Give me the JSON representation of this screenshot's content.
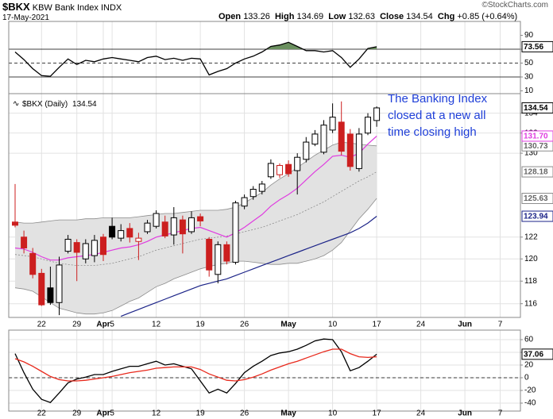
{
  "header": {
    "symbol": "$BKX",
    "name": "KBW Bank Index",
    "exchange": "INDX",
    "date": "17-May-2021",
    "open_label": "Open",
    "high_label": "High",
    "low_label": "Low",
    "close_label": "Close",
    "chg_label": "Chg",
    "chg": "+0.85",
    "chg_pct": "(+0.64%)",
    "watermark": "©StockCharts.com",
    "annotation": [
      "The Banking Index",
      "closed at a new all",
      "time closing high"
    ]
  },
  "chart_data": [
    {
      "type": "line",
      "ylim": [
        6,
        110
      ],
      "yticks": [
        10,
        30,
        50,
        70,
        90
      ],
      "grid": false,
      "reference_lines": [
        {
          "value": 70,
          "fill": "#6a8f5e"
        },
        {
          "value": 50,
          "dash": true
        },
        {
          "value": 30
        }
      ],
      "series": [
        {
          "color": "#000000",
          "values": [
            66,
            55,
            42,
            32,
            31,
            44,
            56,
            48,
            54,
            52,
            56,
            58,
            56,
            54,
            52,
            58,
            60,
            55,
            57,
            54,
            57,
            56,
            33,
            38,
            42,
            50,
            56,
            60,
            66,
            74,
            76,
            80,
            74,
            68,
            68,
            66,
            68,
            58,
            44,
            56,
            71,
            73.56,
            null,
            null,
            null,
            null,
            null,
            null,
            null,
            null,
            null,
            null,
            null,
            null,
            null,
            null,
            null,
            null
          ]
        }
      ]
    },
    {
      "type": "candlestick",
      "legend_label": "$BKX (Daily)",
      "log_scale": true,
      "grid": true,
      "ylim": [
        114.8,
        136
      ],
      "yticks": [
        116,
        118,
        120,
        122,
        130,
        132,
        134
      ],
      "up_color": "#000000",
      "down_color": "#cc1f1f",
      "categories": [
        null,
        null,
        null,
        "22",
        null,
        null,
        null,
        "29",
        null,
        null,
        "Apr",
        "5",
        null,
        null,
        null,
        null,
        "12",
        null,
        null,
        null,
        null,
        "19",
        null,
        null,
        null,
        null,
        "26",
        null,
        null,
        null,
        null,
        "May",
        null,
        null,
        null,
        null,
        "10",
        null,
        null,
        null,
        null,
        "17",
        null,
        null,
        null,
        null,
        "24",
        null,
        null,
        null,
        null,
        "Jun",
        null,
        null,
        null,
        "7",
        null,
        null
      ],
      "open": [
        123.4,
        122.0,
        120.5,
        118.7,
        117.4,
        116.1,
        120.7,
        121.5,
        120.0,
        120.3,
        122.0,
        123.0,
        121.9,
        122.8,
        121.6,
        122.5,
        123.0,
        123.4,
        122.2,
        123.6,
        122.5,
        123.9,
        121.8,
        118.6,
        121.3,
        119.7,
        124.9,
        125.8,
        126.3,
        127.7,
        127.9,
        128.9,
        128.3,
        129.4,
        130.9,
        130.1,
        132.3,
        133.1,
        131.9,
        128.5,
        132.0,
        133.26,
        null,
        null,
        null,
        null,
        null,
        null,
        null,
        null,
        null,
        null,
        null,
        null,
        null,
        null,
        null,
        null
      ],
      "high": [
        127.0,
        122.6,
        121.0,
        119.1,
        119.3,
        120.2,
        122.2,
        121.8,
        121.8,
        122.2,
        122.3,
        123.8,
        123.2,
        123.3,
        122.4,
        123.6,
        124.5,
        124.0,
        124.8,
        124.0,
        124.4,
        124.2,
        122.0,
        121.6,
        121.6,
        125.4,
        126.0,
        126.8,
        127.3,
        129.4,
        129.0,
        129.3,
        130.0,
        131.6,
        132.3,
        133.3,
        135.0,
        135.2,
        132.4,
        132.5,
        134.0,
        134.69,
        null,
        null,
        null,
        null,
        null,
        null,
        null,
        null,
        null,
        null,
        null,
        null,
        null,
        null,
        null,
        null
      ],
      "low": [
        122.9,
        120.5,
        118.25,
        115.8,
        115.9,
        115.0,
        120.5,
        118.0,
        119.6,
        119.7,
        119.8,
        121.8,
        121.6,
        121.5,
        119.9,
        122.3,
        122.8,
        121.9,
        121.3,
        120.5,
        122.3,
        123.0,
        118.4,
        117.8,
        119.5,
        119.5,
        124.6,
        125.5,
        126.0,
        127.5,
        127.6,
        127.7,
        126.0,
        129.1,
        130.7,
        129.9,
        132.0,
        129.8,
        128.3,
        128.2,
        131.8,
        132.63,
        null,
        null,
        null,
        null,
        null,
        null,
        null,
        null,
        null,
        null,
        null,
        null,
        null,
        null,
        null,
        null
      ],
      "close": [
        123.1,
        121.0,
        118.6,
        115.9,
        116.1,
        119.45,
        121.8,
        120.6,
        121.4,
        121.7,
        120.4,
        122.0,
        122.6,
        122.0,
        121.9,
        123.3,
        124.2,
        122.1,
        123.8,
        122.3,
        123.8,
        123.5,
        119.0,
        121.3,
        119.8,
        125.2,
        125.7,
        126.5,
        127.0,
        129.0,
        128.8,
        128.0,
        129.6,
        131.1,
        131.9,
        132.8,
        133.6,
        130.2,
        128.7,
        131.9,
        133.6,
        134.54,
        null,
        null,
        null,
        null,
        null,
        null,
        null,
        null,
        null,
        null,
        null,
        null,
        null,
        null,
        null,
        null
      ],
      "bands": {
        "fill": "#e2e2e2",
        "upper": {
          "color": "#8c8c8c",
          "values": [
            123.4,
            123.3,
            123.3,
            123.4,
            123.5,
            123.6,
            123.6,
            123.6,
            123.7,
            123.7,
            123.8,
            123.8,
            123.8,
            123.8,
            123.9,
            124.0,
            124.1,
            124.2,
            124.2,
            124.3,
            124.4,
            124.5,
            124.5,
            124.5,
            124.6,
            124.8,
            125.2,
            125.7,
            126.2,
            126.9,
            127.5,
            128.0,
            128.6,
            129.2,
            129.8,
            130.3,
            130.8,
            131.1,
            131.0,
            130.9,
            130.8,
            130.73,
            null,
            null,
            null,
            null,
            null,
            null,
            null,
            null,
            null,
            null,
            null,
            null,
            null,
            null,
            null,
            null
          ]
        },
        "middle": {
          "color": "#8c8c8c",
          "dash": true,
          "values": [
            120.4,
            120.3,
            120.2,
            120.0,
            119.8,
            119.6,
            119.5,
            119.4,
            119.4,
            119.4,
            119.5,
            119.6,
            119.8,
            120.0,
            120.2,
            120.5,
            120.8,
            121.0,
            121.2,
            121.4,
            121.6,
            121.8,
            121.9,
            122.0,
            122.1,
            122.3,
            122.5,
            122.7,
            122.9,
            123.2,
            123.5,
            123.8,
            124.1,
            124.5,
            124.9,
            125.3,
            125.8,
            126.3,
            126.8,
            127.3,
            127.7,
            128.18,
            null,
            null,
            null,
            null,
            null,
            null,
            null,
            null,
            null,
            null,
            null,
            null,
            null,
            null,
            null,
            null
          ]
        },
        "lower": {
          "color": "#8c8c8c",
          "values": [
            117.4,
            117.3,
            117.1,
            116.6,
            116.1,
            115.6,
            115.4,
            115.2,
            115.1,
            115.1,
            115.2,
            115.4,
            115.8,
            116.2,
            116.5,
            117.0,
            117.5,
            117.8,
            118.2,
            118.5,
            118.8,
            119.1,
            119.3,
            119.5,
            119.6,
            119.8,
            119.8,
            119.7,
            119.6,
            119.5,
            119.5,
            119.6,
            119.6,
            119.8,
            120.0,
            120.3,
            120.8,
            121.5,
            122.6,
            123.7,
            124.6,
            125.63,
            null,
            null,
            null,
            null,
            null,
            null,
            null,
            null,
            null,
            null,
            null,
            null,
            null,
            null,
            null,
            null
          ]
        }
      },
      "series": [
        {
          "color": "#e03ce0",
          "values": [
            121.0,
            120.9,
            120.6,
            120.2,
            119.9,
            119.9,
            120.1,
            120.2,
            120.3,
            120.4,
            120.6,
            120.8,
            121.0,
            121.1,
            121.3,
            121.6,
            122.0,
            122.2,
            122.4,
            122.6,
            122.8,
            122.9,
            122.6,
            122.3,
            122.0,
            122.4,
            122.9,
            123.5,
            124.1,
            124.9,
            125.5,
            126.0,
            126.6,
            127.4,
            128.2,
            128.9,
            129.7,
            129.8,
            129.6,
            130.0,
            130.9,
            131.7,
            null,
            null,
            null,
            null,
            null,
            null,
            null,
            null,
            null,
            null,
            null,
            null,
            null,
            null,
            null,
            null
          ],
          "value_labels": [
            null,
            null,
            null,
            null,
            null,
            null,
            null,
            null,
            null,
            null,
            null,
            null,
            null,
            null,
            null,
            null,
            null,
            null,
            null,
            null,
            null,
            null,
            null,
            null,
            null,
            null,
            null,
            null,
            null,
            null,
            null,
            null,
            null,
            null,
            null,
            null,
            null,
            null,
            null,
            null,
            null,
            "131.70",
            null,
            null,
            null,
            null,
            null,
            null,
            null,
            null,
            null,
            null,
            null,
            null,
            null,
            null,
            null,
            null
          ]
        },
        {
          "color": "#1c2488",
          "values": [
            null,
            null,
            null,
            null,
            null,
            null,
            null,
            null,
            null,
            null,
            null,
            null,
            114.9,
            115.2,
            115.5,
            115.8,
            116.1,
            116.4,
            116.7,
            117.0,
            117.3,
            117.6,
            117.8,
            118.0,
            118.2,
            118.5,
            118.8,
            119.1,
            119.4,
            119.7,
            120.0,
            120.3,
            120.6,
            120.9,
            121.2,
            121.5,
            121.8,
            122.1,
            122.4,
            122.8,
            123.3,
            123.94,
            null,
            null,
            null,
            null,
            null,
            null,
            null,
            null,
            null,
            null,
            null,
            null,
            null,
            null,
            null,
            null
          ]
        }
      ]
    },
    {
      "type": "line",
      "ylim": [
        -52.5,
        75
      ],
      "yticks": [
        -40,
        -20,
        0,
        20,
        40,
        60
      ],
      "grid": true,
      "reference_lines": [
        {
          "value": 0,
          "dash": true
        }
      ],
      "series": [
        {
          "color": "#000000",
          "values": [
            38,
            8,
            -18,
            -34,
            -39,
            -24,
            -8,
            -2,
            1,
            5,
            5,
            10,
            14,
            18,
            18,
            22,
            26,
            20,
            22,
            18,
            14,
            -5,
            -24,
            -18,
            -24,
            -9,
            8,
            18,
            26,
            35,
            39,
            41,
            45,
            51,
            58,
            61,
            60,
            41,
            11,
            16,
            26,
            37.06,
            null,
            null,
            null,
            null,
            null,
            null,
            null,
            null,
            null,
            null,
            null,
            null,
            null,
            null,
            null,
            null
          ]
        },
        {
          "color": "#e8291c",
          "values": [
            30,
            25,
            18,
            10,
            2,
            -3,
            -5,
            -5,
            -4,
            -2,
            0,
            2,
            5,
            8,
            10,
            12,
            15,
            16,
            17,
            17,
            17,
            13,
            6,
            1,
            -4,
            -5,
            -3,
            1,
            6,
            12,
            17,
            22,
            26,
            31,
            36,
            41,
            45,
            45,
            38,
            33,
            32,
            33,
            null,
            null,
            null,
            null,
            null,
            null,
            null,
            null,
            null,
            null,
            null,
            null,
            null,
            null,
            null,
            null
          ]
        }
      ]
    }
  ]
}
